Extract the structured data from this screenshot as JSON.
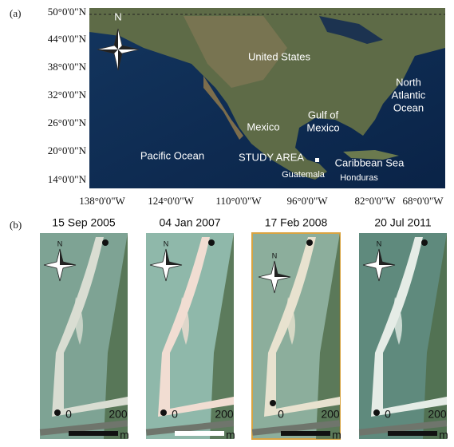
{
  "panel_a": {
    "label": "(a)",
    "north": "N",
    "lat_labels": [
      "50°0'0\"N",
      "44°0'0\"N",
      "38°0'0\"N",
      "32°0'0\"N",
      "26°0'0\"N",
      "20°0'0\"N",
      "14°0'0\"N"
    ],
    "lon_labels": [
      "138°0'0\"W",
      "124°0'0\"W",
      "110°0'0\"W",
      "96°0'0\"W",
      "82°0'0\"W",
      "68°0'0\"W"
    ],
    "places": [
      {
        "lines": [
          "United States"
        ]
      },
      {
        "lines": [
          "Mexico"
        ]
      },
      {
        "lines": [
          "Gulf of",
          "Mexico"
        ]
      },
      {
        "lines": [
          "North",
          "Atlantic",
          "Ocean"
        ]
      },
      {
        "lines": [
          "Pacific Ocean"
        ]
      },
      {
        "lines": [
          "STUDY AREA"
        ]
      },
      {
        "lines": [
          "Guatemala"
        ]
      },
      {
        "lines": [
          "Caribbean Sea"
        ]
      },
      {
        "lines": [
          "Honduras"
        ]
      }
    ]
  },
  "panel_b": {
    "label": "(b)",
    "images": [
      {
        "date": "15 Sep 2005",
        "north": "N",
        "scale_start": 0,
        "scale_end": 200,
        "unit": "m"
      },
      {
        "date": "04 Jan 2007",
        "north": "N",
        "scale_start": 0,
        "scale_end": 200,
        "unit": "m"
      },
      {
        "date": "17 Feb 2008",
        "north": "N",
        "scale_start": 0,
        "scale_end": 200,
        "unit": "m"
      },
      {
        "date": "20 Jul 2011",
        "north": "N",
        "scale_start": 0,
        "scale_end": 200,
        "unit": "m"
      }
    ]
  }
}
